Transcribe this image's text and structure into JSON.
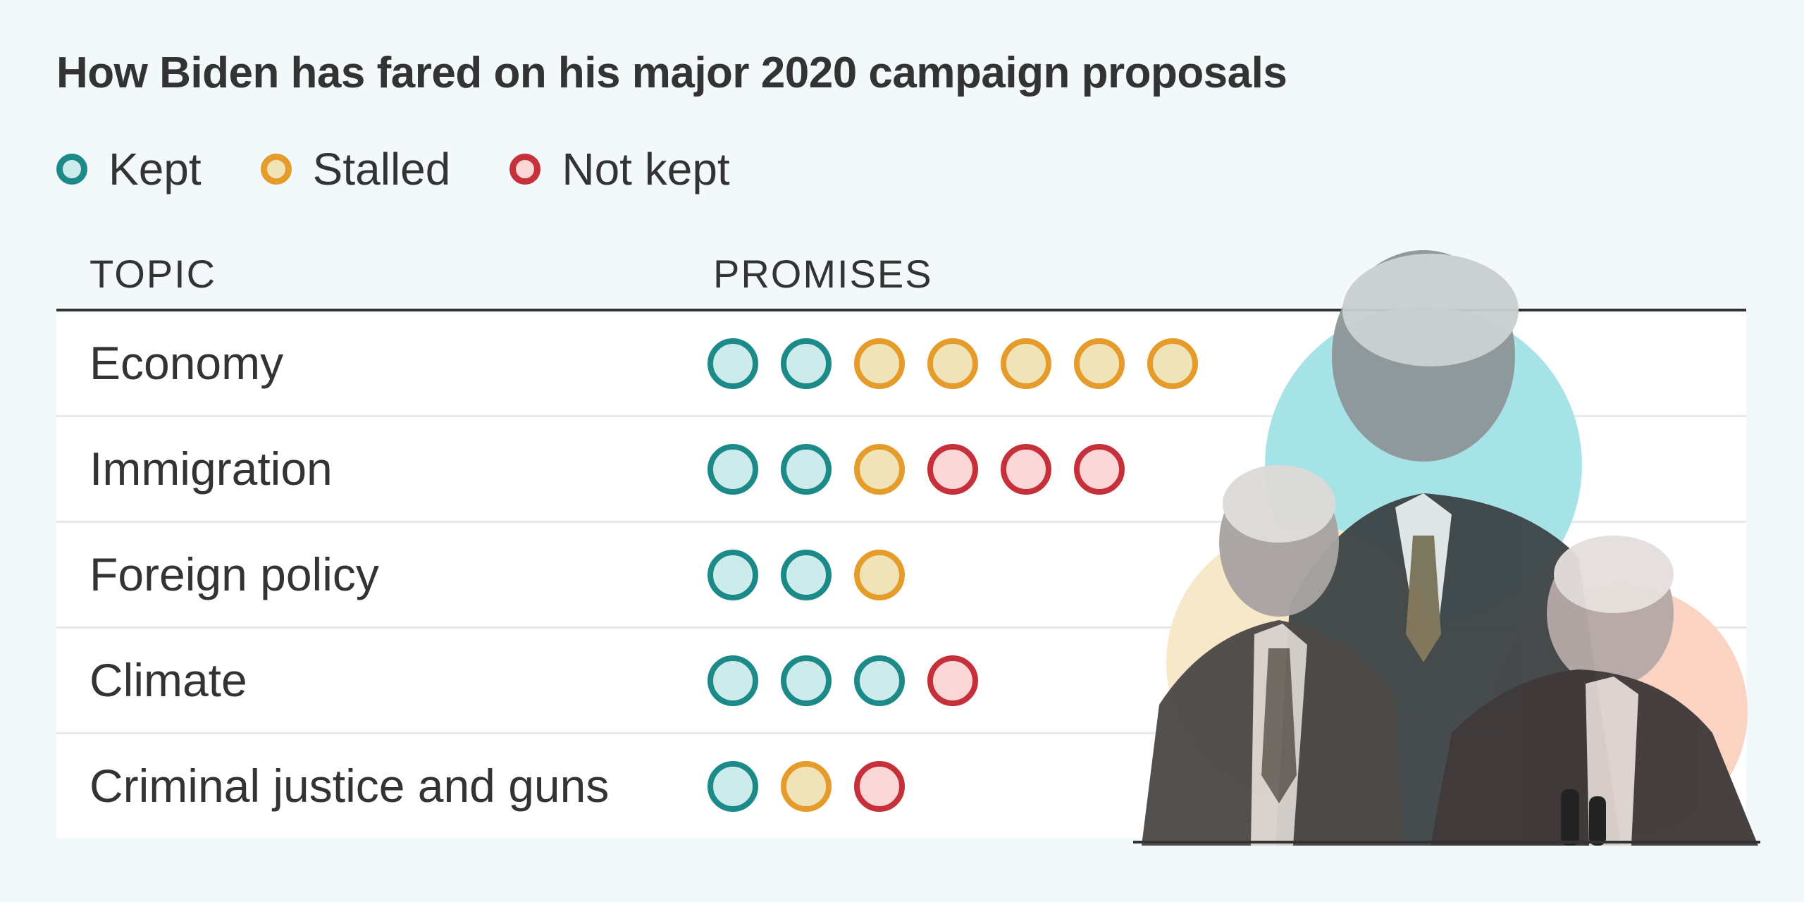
{
  "title": "How Biden has fared on his major 2020 campaign proposals",
  "legend": [
    {
      "label": "Kept",
      "status": "kept"
    },
    {
      "label": "Stalled",
      "status": "stalled"
    },
    {
      "label": "Not kept",
      "status": "not_kept"
    }
  ],
  "colors": {
    "kept": {
      "stroke": "#1d8a8a",
      "fill": "#cdebea"
    },
    "stalled": {
      "stroke": "#e59c2b",
      "fill": "#f0e3b8"
    },
    "not_kept": {
      "stroke": "#c5303b",
      "fill": "#fbd6d6"
    }
  },
  "table": {
    "topic_header": "TOPIC",
    "promises_header": "PROMISES"
  },
  "chart_data": {
    "type": "table",
    "title": "How Biden has fared on his major 2020 campaign proposals",
    "columns": [
      "TOPIC",
      "PROMISES"
    ],
    "rows": [
      {
        "topic": "Economy",
        "promises": [
          "kept",
          "kept",
          "stalled",
          "stalled",
          "stalled",
          "stalled",
          "stalled"
        ],
        "kept": 2,
        "stalled": 5,
        "not_kept": 0
      },
      {
        "topic": "Immigration",
        "promises": [
          "kept",
          "kept",
          "stalled",
          "not_kept",
          "not_kept",
          "not_kept"
        ],
        "kept": 2,
        "stalled": 1,
        "not_kept": 3
      },
      {
        "topic": "Foreign policy",
        "promises": [
          "kept",
          "kept",
          "stalled"
        ],
        "kept": 2,
        "stalled": 1,
        "not_kept": 0
      },
      {
        "topic": "Climate",
        "promises": [
          "kept",
          "kept",
          "kept",
          "not_kept"
        ],
        "kept": 3,
        "stalled": 0,
        "not_kept": 1
      },
      {
        "topic": "Criminal justice and guns",
        "promises": [
          "kept",
          "stalled",
          "not_kept"
        ],
        "kept": 1,
        "stalled": 1,
        "not_kept": 1
      }
    ]
  }
}
